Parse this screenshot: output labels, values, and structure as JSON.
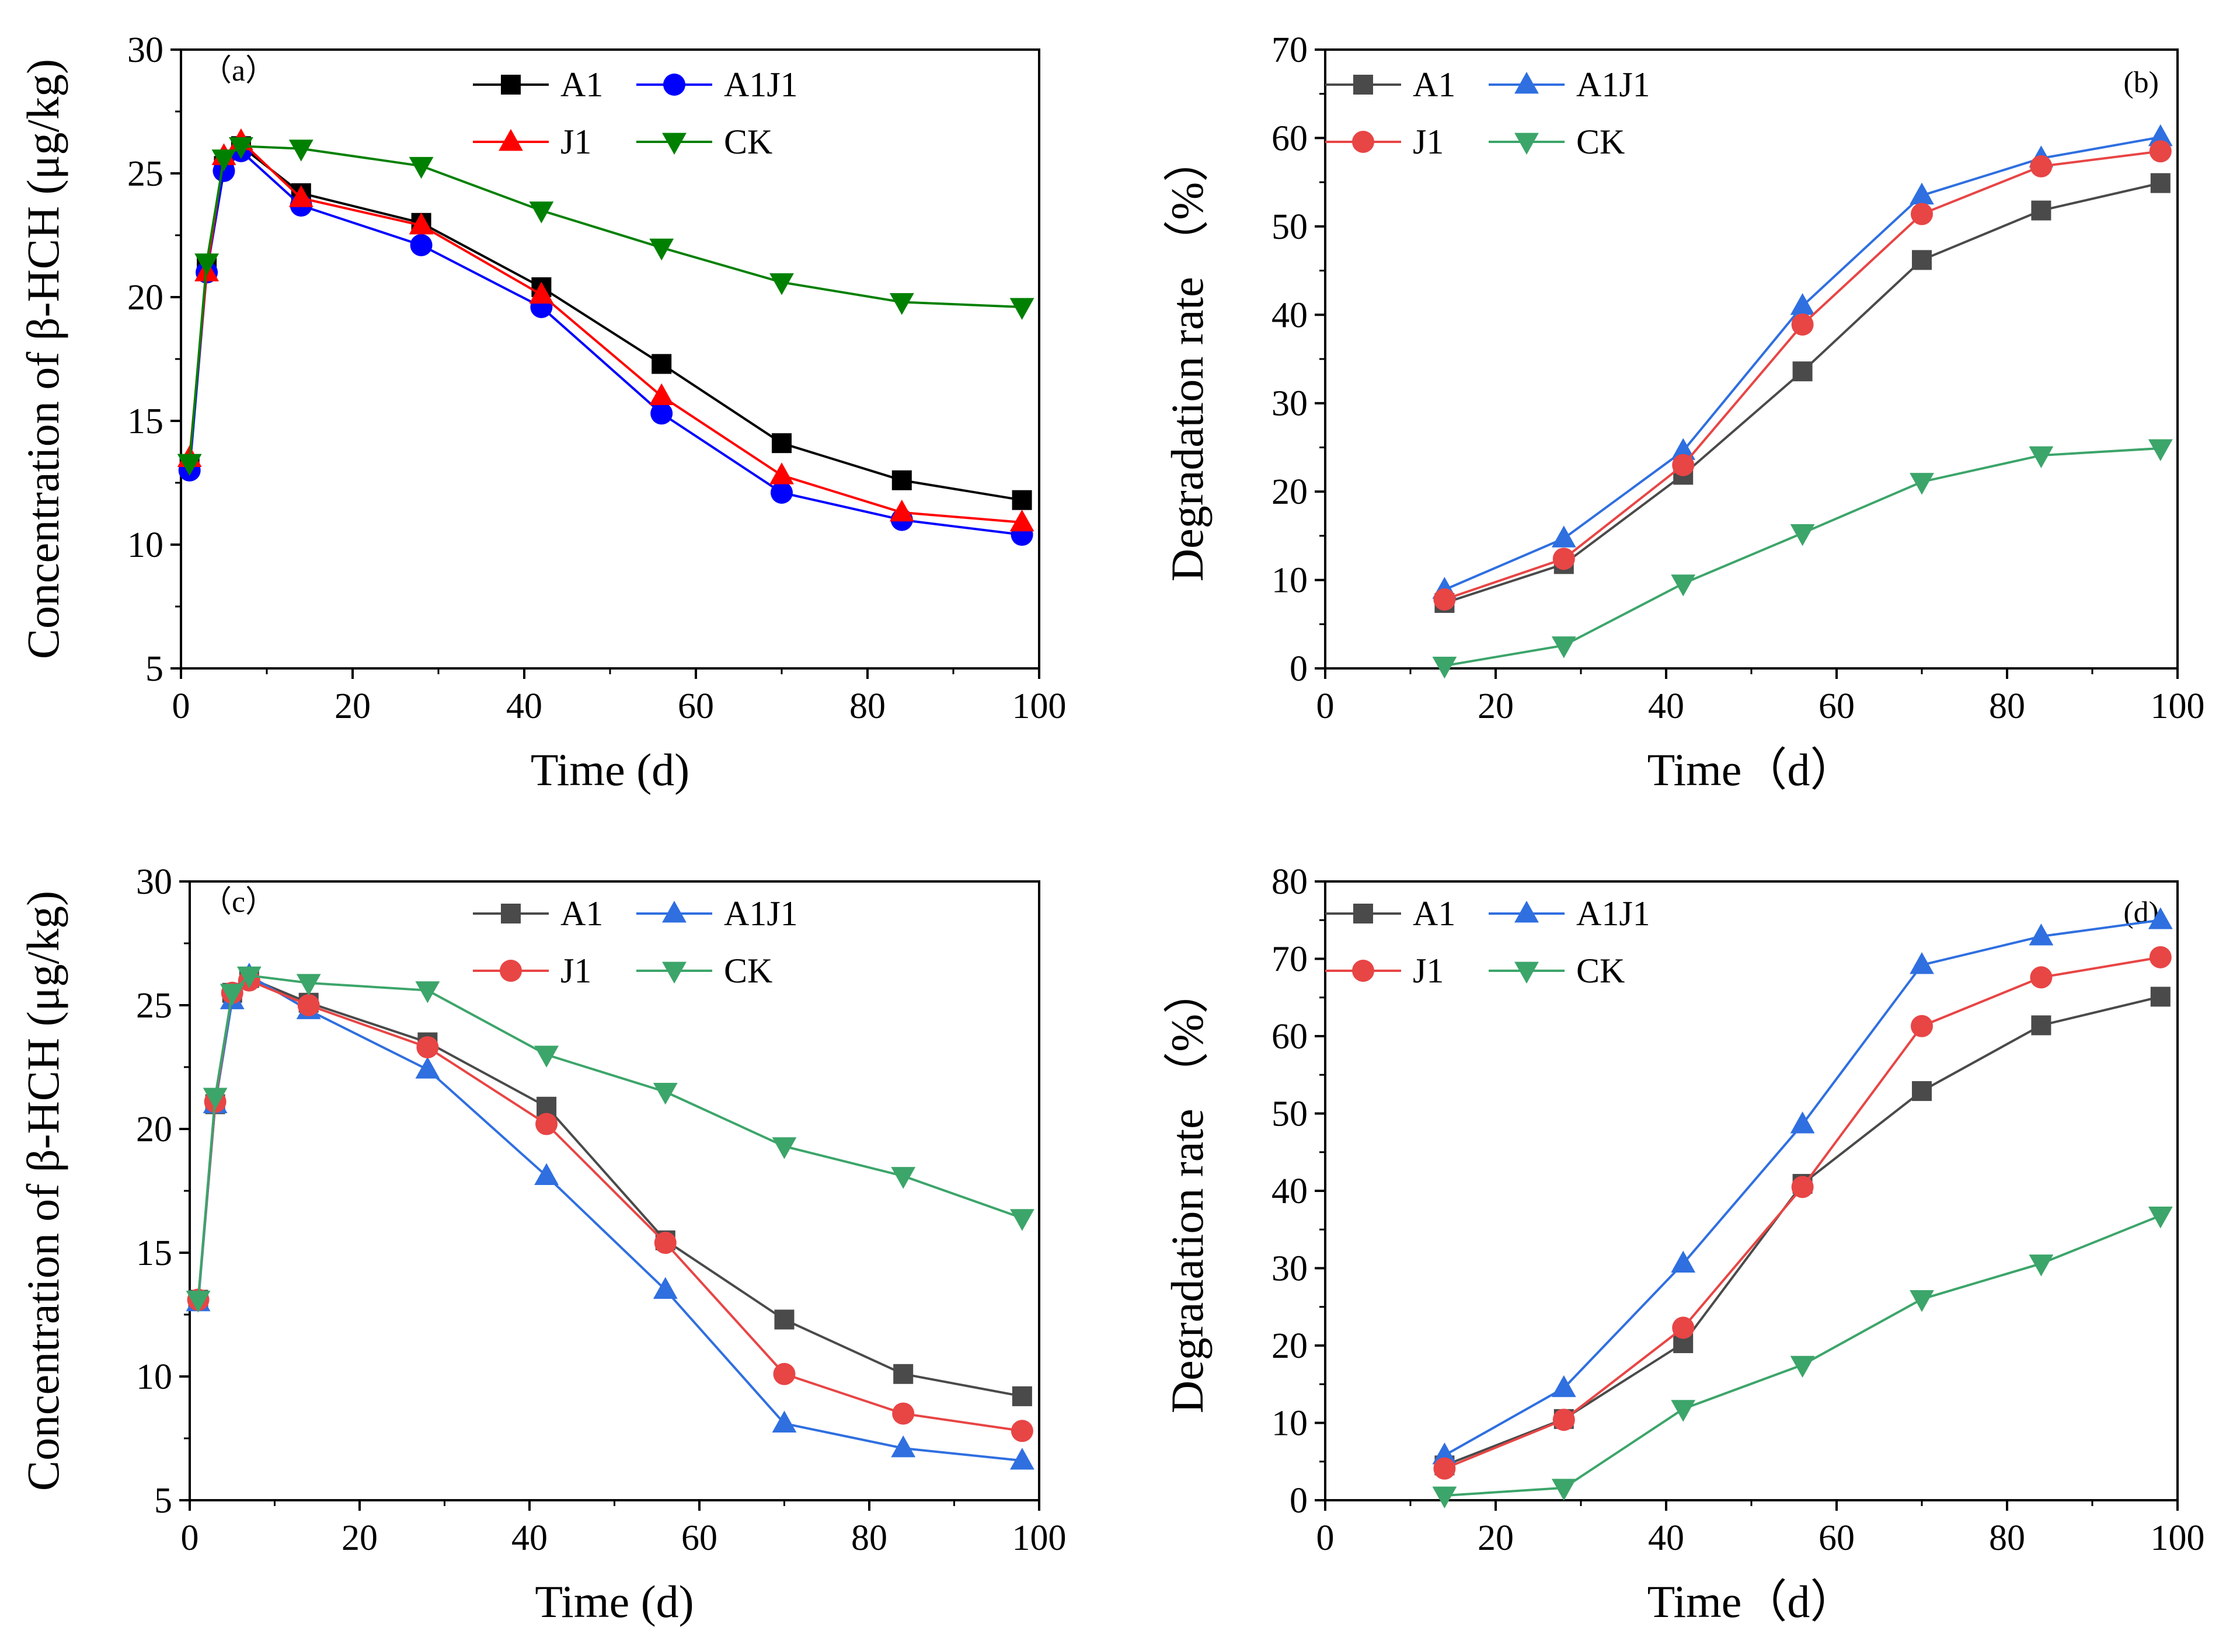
{
  "chart_data": [
    {
      "panel": "(a)",
      "type": "line",
      "xlabel": "Time (d)",
      "ylabel": "Concentration of β-HCH (μg/kg)",
      "xlim": [
        0,
        100
      ],
      "ylim": [
        5,
        30
      ],
      "xticks": [
        0,
        20,
        40,
        60,
        80,
        100
      ],
      "yticks": [
        5,
        10,
        15,
        20,
        25,
        30
      ],
      "legend": "top-center",
      "series": [
        {
          "name": "A1",
          "color": "#000000",
          "marker": "square",
          "x": [
            1,
            3,
            5,
            7,
            14,
            28,
            42,
            56,
            70,
            84,
            98
          ],
          "y": [
            13.2,
            21.2,
            25.3,
            26.1,
            24.2,
            23.0,
            20.4,
            17.3,
            14.1,
            12.6,
            11.8
          ]
        },
        {
          "name": "A1J1",
          "color": "#0000ff",
          "marker": "circle",
          "x": [
            1,
            3,
            5,
            7,
            14,
            28,
            42,
            56,
            70,
            84,
            98
          ],
          "y": [
            13.0,
            21.0,
            25.1,
            25.9,
            23.7,
            22.1,
            19.6,
            15.3,
            12.1,
            11.0,
            10.4
          ]
        },
        {
          "name": "J1",
          "color": "#ff0000",
          "marker": "triangle-up",
          "x": [
            1,
            3,
            5,
            7,
            14,
            28,
            42,
            56,
            70,
            84,
            98
          ],
          "y": [
            13.5,
            21.0,
            25.7,
            26.3,
            24.0,
            22.9,
            20.1,
            16.0,
            12.8,
            11.3,
            10.9
          ]
        },
        {
          "name": "CK",
          "color": "#008000",
          "marker": "triangle-down",
          "x": [
            1,
            3,
            5,
            7,
            14,
            28,
            42,
            56,
            70,
            84,
            98
          ],
          "y": [
            13.3,
            21.4,
            25.6,
            26.1,
            26.0,
            25.3,
            23.5,
            22.0,
            20.6,
            19.8,
            19.6
          ]
        }
      ]
    },
    {
      "panel": "(b)",
      "type": "line",
      "xlabel": "Time（d）",
      "ylabel": "Degradation rate （%）",
      "xlim": [
        0,
        100
      ],
      "ylim": [
        0,
        70
      ],
      "xticks": [
        0,
        20,
        40,
        60,
        80,
        100
      ],
      "yticks": [
        0,
        10,
        20,
        30,
        40,
        50,
        60,
        70
      ],
      "legend": "top-left",
      "series": [
        {
          "name": "A1",
          "color": "#4a4a4a",
          "marker": "square",
          "x": [
            14,
            28,
            42,
            56,
            70,
            84,
            98
          ],
          "y": [
            7.4,
            11.8,
            21.9,
            33.6,
            46.2,
            51.8,
            54.9
          ]
        },
        {
          "name": "A1J1",
          "color": "#2f6fe0",
          "marker": "triangle-up",
          "x": [
            14,
            28,
            42,
            56,
            70,
            84,
            98
          ],
          "y": [
            8.9,
            14.7,
            24.6,
            41.0,
            53.5,
            57.7,
            60.1
          ]
        },
        {
          "name": "J1",
          "color": "#e84545",
          "marker": "circle",
          "x": [
            14,
            28,
            42,
            56,
            70,
            84,
            98
          ],
          "y": [
            7.8,
            12.4,
            23.0,
            38.9,
            51.4,
            56.8,
            58.5
          ]
        },
        {
          "name": "CK",
          "color": "#3ca56a",
          "marker": "triangle-down",
          "x": [
            14,
            28,
            42,
            56,
            70,
            84,
            98
          ],
          "y": [
            0.3,
            2.6,
            9.6,
            15.3,
            21.1,
            24.1,
            24.9
          ]
        }
      ]
    },
    {
      "panel": "(c)",
      "type": "line",
      "xlabel": "Time (d)",
      "ylabel": "Concentration of β-HCH (μg/kg)",
      "xlim": [
        0,
        100
      ],
      "ylim": [
        5,
        30
      ],
      "xticks": [
        0,
        20,
        40,
        60,
        80,
        100
      ],
      "yticks": [
        5,
        10,
        15,
        20,
        25,
        30
      ],
      "legend": "top-center",
      "series": [
        {
          "name": "A1",
          "color": "#4a4a4a",
          "marker": "square",
          "x": [
            1,
            3,
            5,
            7,
            14,
            28,
            42,
            56,
            70,
            84,
            98
          ],
          "y": [
            13.1,
            21.0,
            25.5,
            26.1,
            25.1,
            23.5,
            20.9,
            15.5,
            12.3,
            10.1,
            9.2
          ]
        },
        {
          "name": "A1J1",
          "color": "#2f6fe0",
          "marker": "triangle-up",
          "x": [
            1,
            3,
            5,
            7,
            14,
            28,
            42,
            56,
            70,
            84,
            98
          ],
          "y": [
            13.0,
            21.0,
            25.2,
            26.2,
            24.8,
            22.4,
            18.1,
            13.5,
            8.1,
            7.1,
            6.6
          ]
        },
        {
          "name": "J1",
          "color": "#e84545",
          "marker": "circle",
          "x": [
            1,
            3,
            5,
            7,
            14,
            28,
            42,
            56,
            70,
            84,
            98
          ],
          "y": [
            13.1,
            21.1,
            25.5,
            26.0,
            25.0,
            23.3,
            20.2,
            15.4,
            10.1,
            8.5,
            7.8
          ]
        },
        {
          "name": "CK",
          "color": "#3ca56a",
          "marker": "triangle-down",
          "x": [
            1,
            3,
            5,
            7,
            14,
            28,
            42,
            56,
            70,
            84,
            98
          ],
          "y": [
            13.1,
            21.3,
            25.5,
            26.2,
            25.9,
            25.6,
            23.0,
            21.5,
            19.3,
            18.1,
            16.4
          ]
        }
      ]
    },
    {
      "panel": "(d)",
      "type": "line",
      "xlabel": "Time（d）",
      "ylabel": "Degradation rate （%）",
      "xlim": [
        0,
        100
      ],
      "ylim": [
        0,
        80
      ],
      "xticks": [
        0,
        20,
        40,
        60,
        80,
        100
      ],
      "yticks": [
        0,
        10,
        20,
        30,
        40,
        50,
        60,
        70,
        80
      ],
      "legend": "top-left",
      "series": [
        {
          "name": "A1",
          "color": "#4a4a4a",
          "marker": "square",
          "x": [
            14,
            28,
            42,
            56,
            70,
            84,
            98
          ],
          "y": [
            4.5,
            10.5,
            20.3,
            40.9,
            52.9,
            61.4,
            65.1
          ]
        },
        {
          "name": "A1J1",
          "color": "#2f6fe0",
          "marker": "triangle-up",
          "x": [
            14,
            28,
            42,
            56,
            70,
            84,
            98
          ],
          "y": [
            5.8,
            14.5,
            30.6,
            48.6,
            69.2,
            72.9,
            75.0
          ]
        },
        {
          "name": "J1",
          "color": "#e84545",
          "marker": "circle",
          "x": [
            14,
            28,
            42,
            56,
            70,
            84,
            98
          ],
          "y": [
            4.1,
            10.4,
            22.3,
            40.5,
            61.3,
            67.6,
            70.2
          ]
        },
        {
          "name": "CK",
          "color": "#3ca56a",
          "marker": "triangle-down",
          "x": [
            14,
            28,
            42,
            56,
            70,
            84,
            98
          ],
          "y": [
            0.6,
            1.6,
            11.8,
            17.5,
            26.0,
            30.6,
            36.8
          ]
        }
      ]
    }
  ]
}
